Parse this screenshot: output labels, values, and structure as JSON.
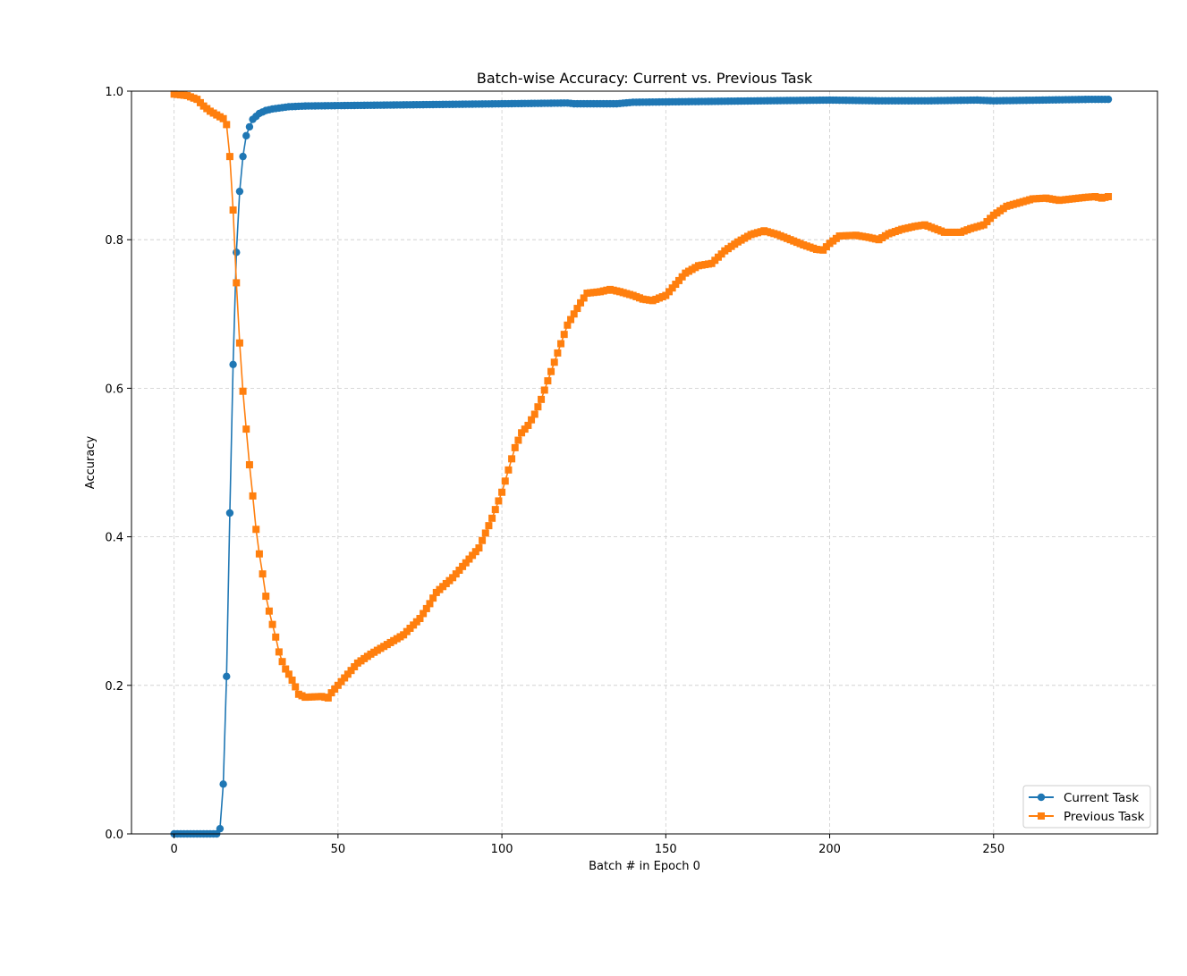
{
  "chart_data": {
    "type": "line",
    "title": "Batch-wise Accuracy: Current vs. Previous Task",
    "xlabel": "Batch # in Epoch 0",
    "ylabel": "Accuracy",
    "xlim": [
      -13,
      300
    ],
    "ylim": [
      0.0,
      1.0
    ],
    "xticks": [
      0,
      50,
      100,
      150,
      200,
      250
    ],
    "yticks": [
      0.0,
      0.2,
      0.4,
      0.6,
      0.8,
      1.0
    ],
    "xtick_labels": [
      "0",
      "50",
      "100",
      "150",
      "200",
      "250"
    ],
    "ytick_labels": [
      "0.0",
      "0.2",
      "0.4",
      "0.6",
      "0.8",
      "1.0"
    ],
    "grid": true,
    "legend_position": "bottom-right",
    "x_start": 0,
    "x_end": 285,
    "series": [
      {
        "name": "Current Task",
        "color": "#1f77b4",
        "marker": "circle",
        "keypoints": [
          [
            0,
            0.0
          ],
          [
            13,
            0.0
          ],
          [
            14,
            0.007
          ],
          [
            15,
            0.067
          ],
          [
            16,
            0.212
          ],
          [
            17,
            0.432
          ],
          [
            18,
            0.632
          ],
          [
            19,
            0.783
          ],
          [
            20,
            0.865
          ],
          [
            21,
            0.912
          ],
          [
            22,
            0.94
          ],
          [
            23,
            0.952
          ],
          [
            24,
            0.962
          ],
          [
            26,
            0.97
          ],
          [
            28,
            0.974
          ],
          [
            30,
            0.976
          ],
          [
            35,
            0.979
          ],
          [
            40,
            0.98
          ],
          [
            60,
            0.981
          ],
          [
            80,
            0.982
          ],
          [
            100,
            0.983
          ],
          [
            120,
            0.984
          ],
          [
            122,
            0.983
          ],
          [
            135,
            0.983
          ],
          [
            140,
            0.985
          ],
          [
            160,
            0.986
          ],
          [
            180,
            0.987
          ],
          [
            200,
            0.988
          ],
          [
            215,
            0.987
          ],
          [
            230,
            0.987
          ],
          [
            245,
            0.988
          ],
          [
            250,
            0.987
          ],
          [
            265,
            0.988
          ],
          [
            280,
            0.989
          ],
          [
            285,
            0.989
          ]
        ]
      },
      {
        "name": "Previous Task",
        "color": "#ff7f0e",
        "marker": "square",
        "keypoints": [
          [
            0,
            0.996
          ],
          [
            4,
            0.994
          ],
          [
            7,
            0.989
          ],
          [
            9,
            0.98
          ],
          [
            11,
            0.973
          ],
          [
            13,
            0.968
          ],
          [
            15,
            0.963
          ],
          [
            16,
            0.955
          ],
          [
            17,
            0.912
          ],
          [
            18,
            0.84
          ],
          [
            19,
            0.742
          ],
          [
            20,
            0.661
          ],
          [
            21,
            0.596
          ],
          [
            22,
            0.545
          ],
          [
            23,
            0.497
          ],
          [
            24,
            0.455
          ],
          [
            25,
            0.41
          ],
          [
            26,
            0.377
          ],
          [
            27,
            0.35
          ],
          [
            28,
            0.32
          ],
          [
            29,
            0.3
          ],
          [
            30,
            0.282
          ],
          [
            31,
            0.265
          ],
          [
            32,
            0.245
          ],
          [
            33,
            0.232
          ],
          [
            34,
            0.222
          ],
          [
            35,
            0.215
          ],
          [
            36,
            0.207
          ],
          [
            37,
            0.198
          ],
          [
            38,
            0.188
          ],
          [
            40,
            0.184
          ],
          [
            45,
            0.185
          ],
          [
            47,
            0.183
          ],
          [
            48,
            0.19
          ],
          [
            50,
            0.2
          ],
          [
            53,
            0.215
          ],
          [
            56,
            0.23
          ],
          [
            60,
            0.242
          ],
          [
            65,
            0.255
          ],
          [
            70,
            0.268
          ],
          [
            75,
            0.29
          ],
          [
            78,
            0.31
          ],
          [
            80,
            0.325
          ],
          [
            85,
            0.345
          ],
          [
            90,
            0.37
          ],
          [
            93,
            0.385
          ],
          [
            95,
            0.405
          ],
          [
            97,
            0.425
          ],
          [
            100,
            0.46
          ],
          [
            102,
            0.49
          ],
          [
            104,
            0.52
          ],
          [
            106,
            0.54
          ],
          [
            108,
            0.55
          ],
          [
            110,
            0.565
          ],
          [
            112,
            0.585
          ],
          [
            114,
            0.61
          ],
          [
            116,
            0.635
          ],
          [
            118,
            0.66
          ],
          [
            120,
            0.685
          ],
          [
            122,
            0.7
          ],
          [
            124,
            0.715
          ],
          [
            126,
            0.728
          ],
          [
            130,
            0.73
          ],
          [
            133,
            0.733
          ],
          [
            136,
            0.73
          ],
          [
            140,
            0.725
          ],
          [
            143,
            0.72
          ],
          [
            146,
            0.718
          ],
          [
            150,
            0.725
          ],
          [
            153,
            0.74
          ],
          [
            156,
            0.755
          ],
          [
            160,
            0.765
          ],
          [
            164,
            0.768
          ],
          [
            168,
            0.785
          ],
          [
            172,
            0.797
          ],
          [
            176,
            0.807
          ],
          [
            180,
            0.812
          ],
          [
            184,
            0.807
          ],
          [
            188,
            0.8
          ],
          [
            192,
            0.793
          ],
          [
            196,
            0.787
          ],
          [
            198,
            0.786
          ],
          [
            200,
            0.795
          ],
          [
            203,
            0.805
          ],
          [
            208,
            0.806
          ],
          [
            212,
            0.803
          ],
          [
            215,
            0.8
          ],
          [
            218,
            0.808
          ],
          [
            222,
            0.814
          ],
          [
            226,
            0.818
          ],
          [
            229,
            0.82
          ],
          [
            232,
            0.815
          ],
          [
            235,
            0.81
          ],
          [
            240,
            0.81
          ],
          [
            243,
            0.815
          ],
          [
            247,
            0.82
          ],
          [
            250,
            0.833
          ],
          [
            254,
            0.845
          ],
          [
            258,
            0.85
          ],
          [
            262,
            0.855
          ],
          [
            266,
            0.856
          ],
          [
            270,
            0.853
          ],
          [
            274,
            0.855
          ],
          [
            278,
            0.857
          ],
          [
            281,
            0.858
          ],
          [
            283,
            0.856
          ],
          [
            285,
            0.858
          ]
        ]
      }
    ]
  }
}
